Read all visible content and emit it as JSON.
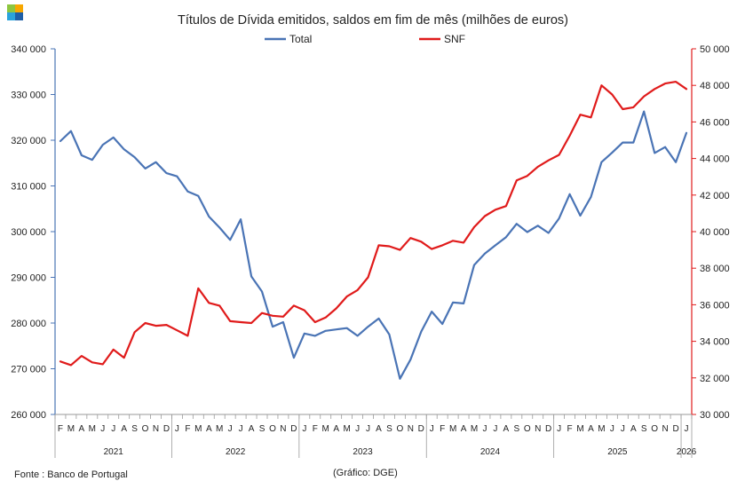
{
  "logo": {
    "colors": [
      "#8dc63f",
      "#f7a700",
      "#29a3dc",
      "#1f5fa8"
    ]
  },
  "chart_data": {
    "type": "line",
    "title": "Títulos de Dívida emitidos, saldos em fim de mês  (milhões de euros)",
    "grid": false,
    "legend_position": "top",
    "x": [
      "2021-02",
      "2021-03",
      "2021-04",
      "2021-05",
      "2021-06",
      "2021-07",
      "2021-08",
      "2021-09",
      "2021-10",
      "2021-11",
      "2021-12",
      "2022-01",
      "2022-02",
      "2022-03",
      "2022-04",
      "2022-05",
      "2022-06",
      "2022-07",
      "2022-08",
      "2022-09",
      "2022-10",
      "2022-11",
      "2022-12",
      "2023-01",
      "2023-02",
      "2023-03",
      "2023-04",
      "2023-05",
      "2023-06",
      "2023-07",
      "2023-08",
      "2023-09",
      "2023-10",
      "2023-11",
      "2023-12",
      "2024-01",
      "2024-02",
      "2024-03",
      "2024-04",
      "2024-05",
      "2024-06",
      "2024-07",
      "2024-08",
      "2024-09",
      "2024-10",
      "2024-11",
      "2024-12",
      "2025-01",
      "2025-02",
      "2025-03",
      "2025-04",
      "2025-05",
      "2025-06",
      "2025-07",
      "2025-08",
      "2025-09",
      "2025-10",
      "2025-11",
      "2025-12",
      "2026-01"
    ],
    "x_month_labels": [
      "F",
      "M",
      "A",
      "M",
      "J",
      "J",
      "A",
      "S",
      "O",
      "N",
      "D",
      "J",
      "F",
      "M",
      "A",
      "M",
      "J",
      "J",
      "A",
      "S",
      "O",
      "N",
      "D",
      "J",
      "F",
      "M",
      "A",
      "M",
      "J",
      "J",
      "A",
      "S",
      "O",
      "N",
      "D",
      "J",
      "F",
      "M",
      "A",
      "M",
      "J",
      "J",
      "A",
      "S",
      "O",
      "N",
      "D",
      "J",
      "F",
      "M",
      "A",
      "M",
      "J",
      "J",
      "A",
      "S",
      "O",
      "N",
      "D",
      "J"
    ],
    "x_year_labels": [
      "2021",
      "2022",
      "2023",
      "2024",
      "2025",
      "2026"
    ],
    "y_left": {
      "lim": [
        260000,
        340000
      ],
      "ticks": [
        "260 000",
        "270 000",
        "280 000",
        "290 000",
        "300 000",
        "310 000",
        "320 000",
        "330 000",
        "340 000"
      ]
    },
    "y_right": {
      "lim": [
        30000,
        50000
      ],
      "ticks": [
        "30 000",
        "32 000",
        "34 000",
        "36 000",
        "38 000",
        "40 000",
        "42 000",
        "44 000",
        "46 000",
        "48 000",
        "50 000"
      ]
    },
    "series": [
      {
        "name": "Total",
        "axis": "left",
        "color": "#4a74b5",
        "values": [
          319800,
          322000,
          316700,
          315700,
          319000,
          320600,
          318000,
          316300,
          313800,
          315200,
          312800,
          312100,
          308800,
          307800,
          303300,
          300900,
          298200,
          302700,
          290200,
          286900,
          279200,
          280200,
          272400,
          277700,
          277200,
          278300,
          278600,
          278900,
          277200,
          279200,
          281000,
          277500,
          267800,
          272000,
          278100,
          282500,
          279800,
          284500,
          284300,
          292700,
          295200,
          297000,
          298800,
          301700,
          299900,
          301300,
          299700,
          302900,
          308200,
          303500,
          307600,
          315200,
          317300,
          319500,
          319500,
          326300,
          317200,
          318500,
          315200,
          321600
        ]
      },
      {
        "name": "SNF",
        "axis": "right",
        "color": "#e01b1b",
        "values": [
          32900,
          32700,
          33200,
          32850,
          32750,
          33550,
          33100,
          34500,
          35000,
          34850,
          34900,
          34600,
          34300,
          36900,
          36100,
          35950,
          35100,
          35050,
          35000,
          35550,
          35400,
          35350,
          35950,
          35700,
          35050,
          35300,
          35800,
          36450,
          36800,
          37500,
          39250,
          39200,
          39000,
          39650,
          39450,
          39050,
          39250,
          39500,
          39400,
          40250,
          40850,
          41200,
          41400,
          42800,
          43050,
          43550,
          43900,
          44200,
          45250,
          46400,
          46250,
          48000,
          47500,
          46700,
          46800,
          47400,
          47800,
          48100,
          48200,
          47800
        ]
      }
    ]
  },
  "footer": {
    "source": "Fonte : Banco de Portugal",
    "credit": "(Gráfico: DGE)"
  }
}
